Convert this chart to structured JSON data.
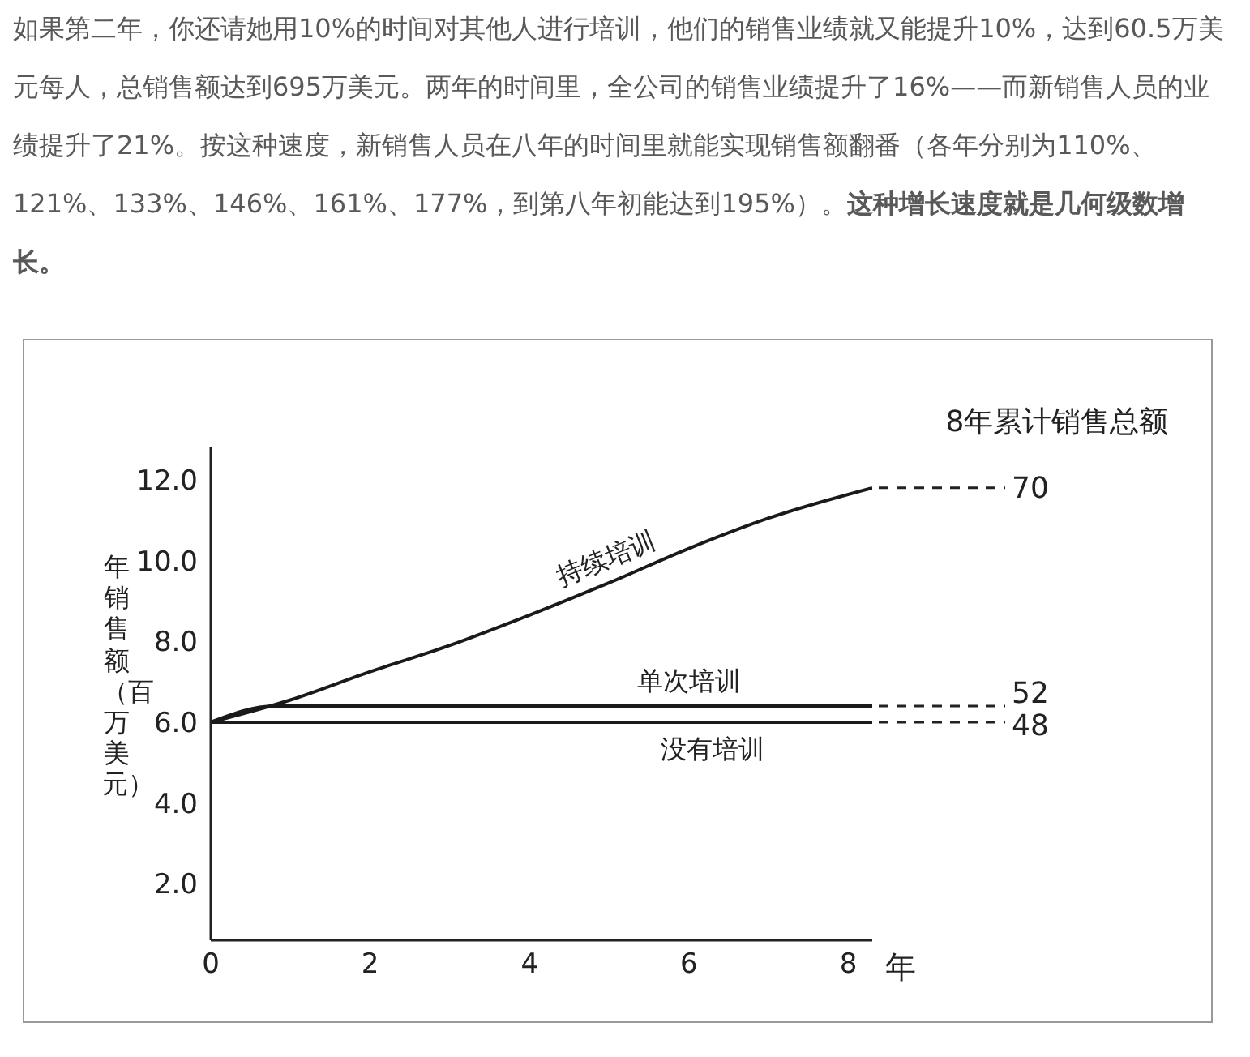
{
  "chart_data": {
    "type": "line",
    "xlabel": "年",
    "ylabel": "年销售额（百万美元）",
    "xlim": [
      0,
      8.3
    ],
    "ylim": [
      0.6,
      12.8
    ],
    "xticks": [
      0,
      2,
      4,
      6,
      8
    ],
    "yticks": [
      {
        "value": 2,
        "label": "2.0"
      },
      {
        "value": 4,
        "label": "4.0"
      },
      {
        "value": 6,
        "label": "6.0"
      },
      {
        "value": 8,
        "label": "8.0"
      },
      {
        "value": 10,
        "label": "10.0"
      },
      {
        "value": 12,
        "label": "12.0"
      }
    ],
    "grid": false,
    "marker": "none",
    "line_style": "solid",
    "series": [
      {
        "name": "持续培训",
        "color": "#1a1a1a",
        "x": [
          0,
          1,
          2,
          3,
          4,
          5,
          6,
          7,
          8.3
        ],
        "values": [
          6,
          6.55,
          7.25,
          7.9,
          8.65,
          9.45,
          10.3,
          11.05,
          11.8
        ]
      },
      {
        "name": "单次培训",
        "color": "#1a1a1a",
        "x": [
          0,
          0.8,
          8.3
        ],
        "values": [
          6,
          6.4,
          6.4
        ]
      },
      {
        "name": "没有培训",
        "color": "#1a1a1a",
        "x": [
          0,
          8.3
        ],
        "values": [
          6,
          6
        ]
      }
    ],
    "annotations": [
      "如果第二年，你还请她用10%的时间对其他人进行培训，他们的销售业绩就又能提升10%，达到60.5万美元每人，总销售额达到695万美元。两年的时间里，全公司的销售业绩提升了16%——而新销售人员的业绩提升了21%。按这种速度，新销售人员在八年的时间里就能实现销售额翻番（各年分别为110%、121%、133%、146%、161%、177%，到第八年初能达到195%）。",
      "这种增长速度就是几何级数增长。",
      "8年累计销售总额",
      "70",
      "52",
      "48"
    ]
  }
}
